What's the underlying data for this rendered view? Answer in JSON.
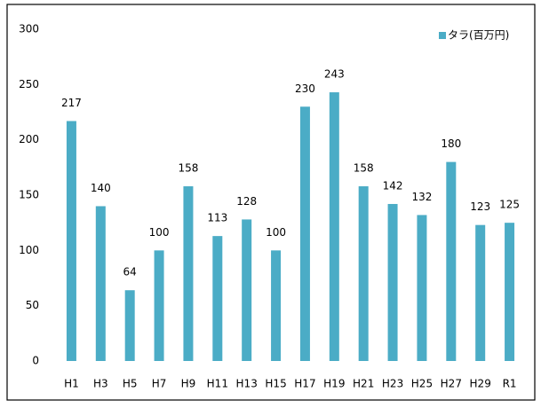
{
  "chart_data": {
    "type": "bar",
    "categories": [
      "H1",
      "H3",
      "H5",
      "H7",
      "H9",
      "H11",
      "H13",
      "H15",
      "H17",
      "H19",
      "H21",
      "H23",
      "H25",
      "H27",
      "H29",
      "R1"
    ],
    "series": [
      {
        "name": "タラ(百万円)",
        "color": "#4bacc6",
        "values": [
          217,
          140,
          64,
          100,
          158,
          113,
          128,
          100,
          230,
          243,
          158,
          142,
          132,
          180,
          123,
          125
        ]
      }
    ],
    "ylim": [
      0,
      300
    ],
    "yticks": [
      0,
      50,
      100,
      150,
      200,
      250,
      300
    ],
    "grid": false,
    "legend": "top-right"
  }
}
